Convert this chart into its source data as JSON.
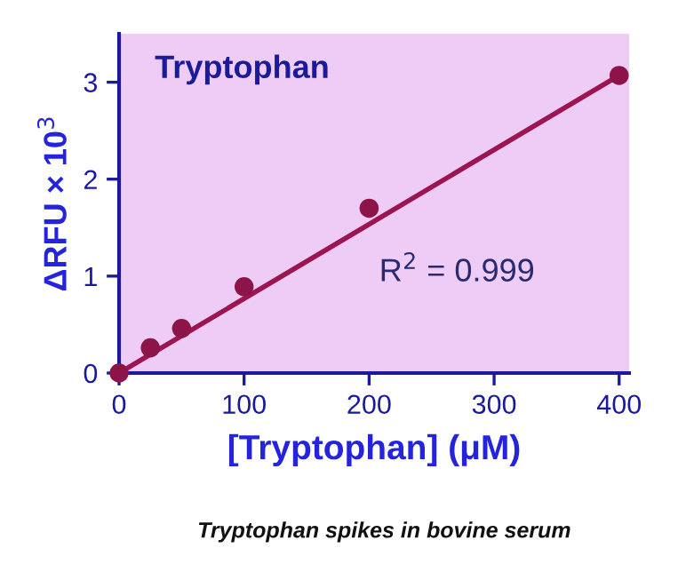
{
  "chart_data": {
    "type": "scatter",
    "title": "Tryptophan",
    "xlabel": "[Tryptophan] (μM)",
    "ylabel": "ΔRFU × 10$^{3}$",
    "annotations": [
      "R$^{2}$ = 0.999",
      "Tryptophan spikes in bovine serum"
    ],
    "series": [
      {
        "marker": "circle",
        "color": "#8c1448",
        "x": [
          0,
          25,
          50,
          100,
          200,
          400
        ],
        "values": [
          0,
          0.26,
          0.46,
          0.89,
          1.7,
          3.07
        ]
      },
      {
        "type": "line",
        "marker": "none",
        "color": "#9c1450",
        "x": [
          0,
          400
        ],
        "values": [
          0,
          3.07
        ]
      }
    ],
    "xlim": [
      0,
      408
    ],
    "ylim": [
      0,
      3.5
    ],
    "xticks": [
      0,
      100,
      200,
      300,
      400
    ],
    "yticks": [
      0,
      1,
      2,
      3
    ],
    "grid": false,
    "legend": false
  }
}
